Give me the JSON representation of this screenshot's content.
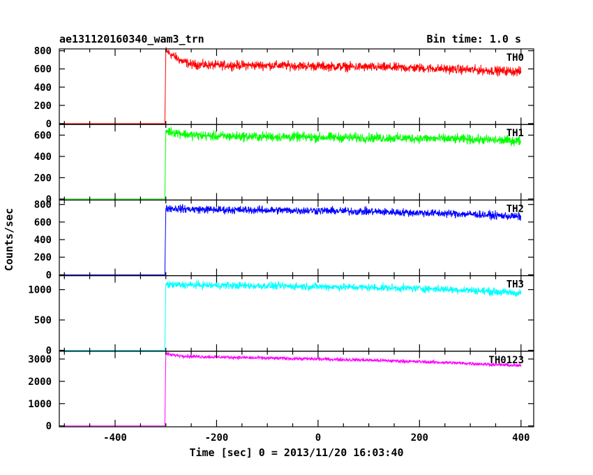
{
  "chart_data": {
    "type": "line",
    "title": "ae131120160340_wam3_trn",
    "bin_time_label": "Bin time: 1.0 s",
    "xlabel": "Time [sec] 0 = 2013/11/20 16:03:40",
    "ylabel": "Counts/sec",
    "xlim": [
      -510,
      425
    ],
    "xticks": [
      -400,
      -200,
      0,
      200,
      400
    ],
    "grid": false,
    "panels": [
      {
        "name": "TH0",
        "color": "#ff0000",
        "ylim": [
          -10,
          820
        ],
        "yticks": [
          0,
          200,
          400,
          600,
          800
        ],
        "points": [
          [
            -510,
            0
          ],
          [
            -302,
            0
          ],
          [
            -300,
            800
          ],
          [
            -290,
            760
          ],
          [
            -270,
            690
          ],
          [
            -250,
            650
          ],
          [
            -200,
            640
          ],
          [
            -100,
            640
          ],
          [
            0,
            630
          ],
          [
            100,
            620
          ],
          [
            200,
            610
          ],
          [
            300,
            590
          ],
          [
            400,
            570
          ]
        ],
        "noise": 45
      },
      {
        "name": "TH1",
        "color": "#00ff00",
        "ylim": [
          -10,
          700
        ],
        "yticks": [
          0,
          200,
          400,
          600
        ],
        "points": [
          [
            -510,
            0
          ],
          [
            -302,
            0
          ],
          [
            -300,
            640
          ],
          [
            -250,
            600
          ],
          [
            -200,
            590
          ],
          [
            -100,
            585
          ],
          [
            0,
            580
          ],
          [
            100,
            575
          ],
          [
            200,
            570
          ],
          [
            300,
            560
          ],
          [
            400,
            545
          ]
        ],
        "noise": 40
      },
      {
        "name": "TH2",
        "color": "#0000ff",
        "ylim": [
          -10,
          850
        ],
        "yticks": [
          0,
          200,
          400,
          600,
          800
        ],
        "points": [
          [
            -510,
            0
          ],
          [
            -302,
            0
          ],
          [
            -300,
            760
          ],
          [
            -250,
            745
          ],
          [
            -200,
            740
          ],
          [
            -100,
            735
          ],
          [
            0,
            730
          ],
          [
            100,
            720
          ],
          [
            200,
            705
          ],
          [
            300,
            690
          ],
          [
            400,
            660
          ]
        ],
        "noise": 40
      },
      {
        "name": "TH3",
        "color": "#00ffff",
        "ylim": [
          -15,
          1230
        ],
        "yticks": [
          0,
          500,
          1000
        ],
        "points": [
          [
            -510,
            0
          ],
          [
            -302,
            0
          ],
          [
            -300,
            1080
          ],
          [
            -250,
            1075
          ],
          [
            -200,
            1070
          ],
          [
            -100,
            1060
          ],
          [
            0,
            1050
          ],
          [
            100,
            1035
          ],
          [
            200,
            1020
          ],
          [
            300,
            990
          ],
          [
            400,
            940
          ]
        ],
        "noise": 55
      },
      {
        "name": "TH0123",
        "color": "#ff00ff",
        "ylim": [
          -40,
          3350
        ],
        "yticks": [
          0,
          1000,
          2000,
          3000
        ],
        "points": [
          [
            -510,
            0
          ],
          [
            -302,
            0
          ],
          [
            -300,
            3250
          ],
          [
            -290,
            3180
          ],
          [
            -250,
            3120
          ],
          [
            -200,
            3090
          ],
          [
            -100,
            3040
          ],
          [
            0,
            3000
          ],
          [
            100,
            2950
          ],
          [
            200,
            2880
          ],
          [
            300,
            2800
          ],
          [
            400,
            2700
          ]
        ],
        "noise": 70
      }
    ]
  }
}
